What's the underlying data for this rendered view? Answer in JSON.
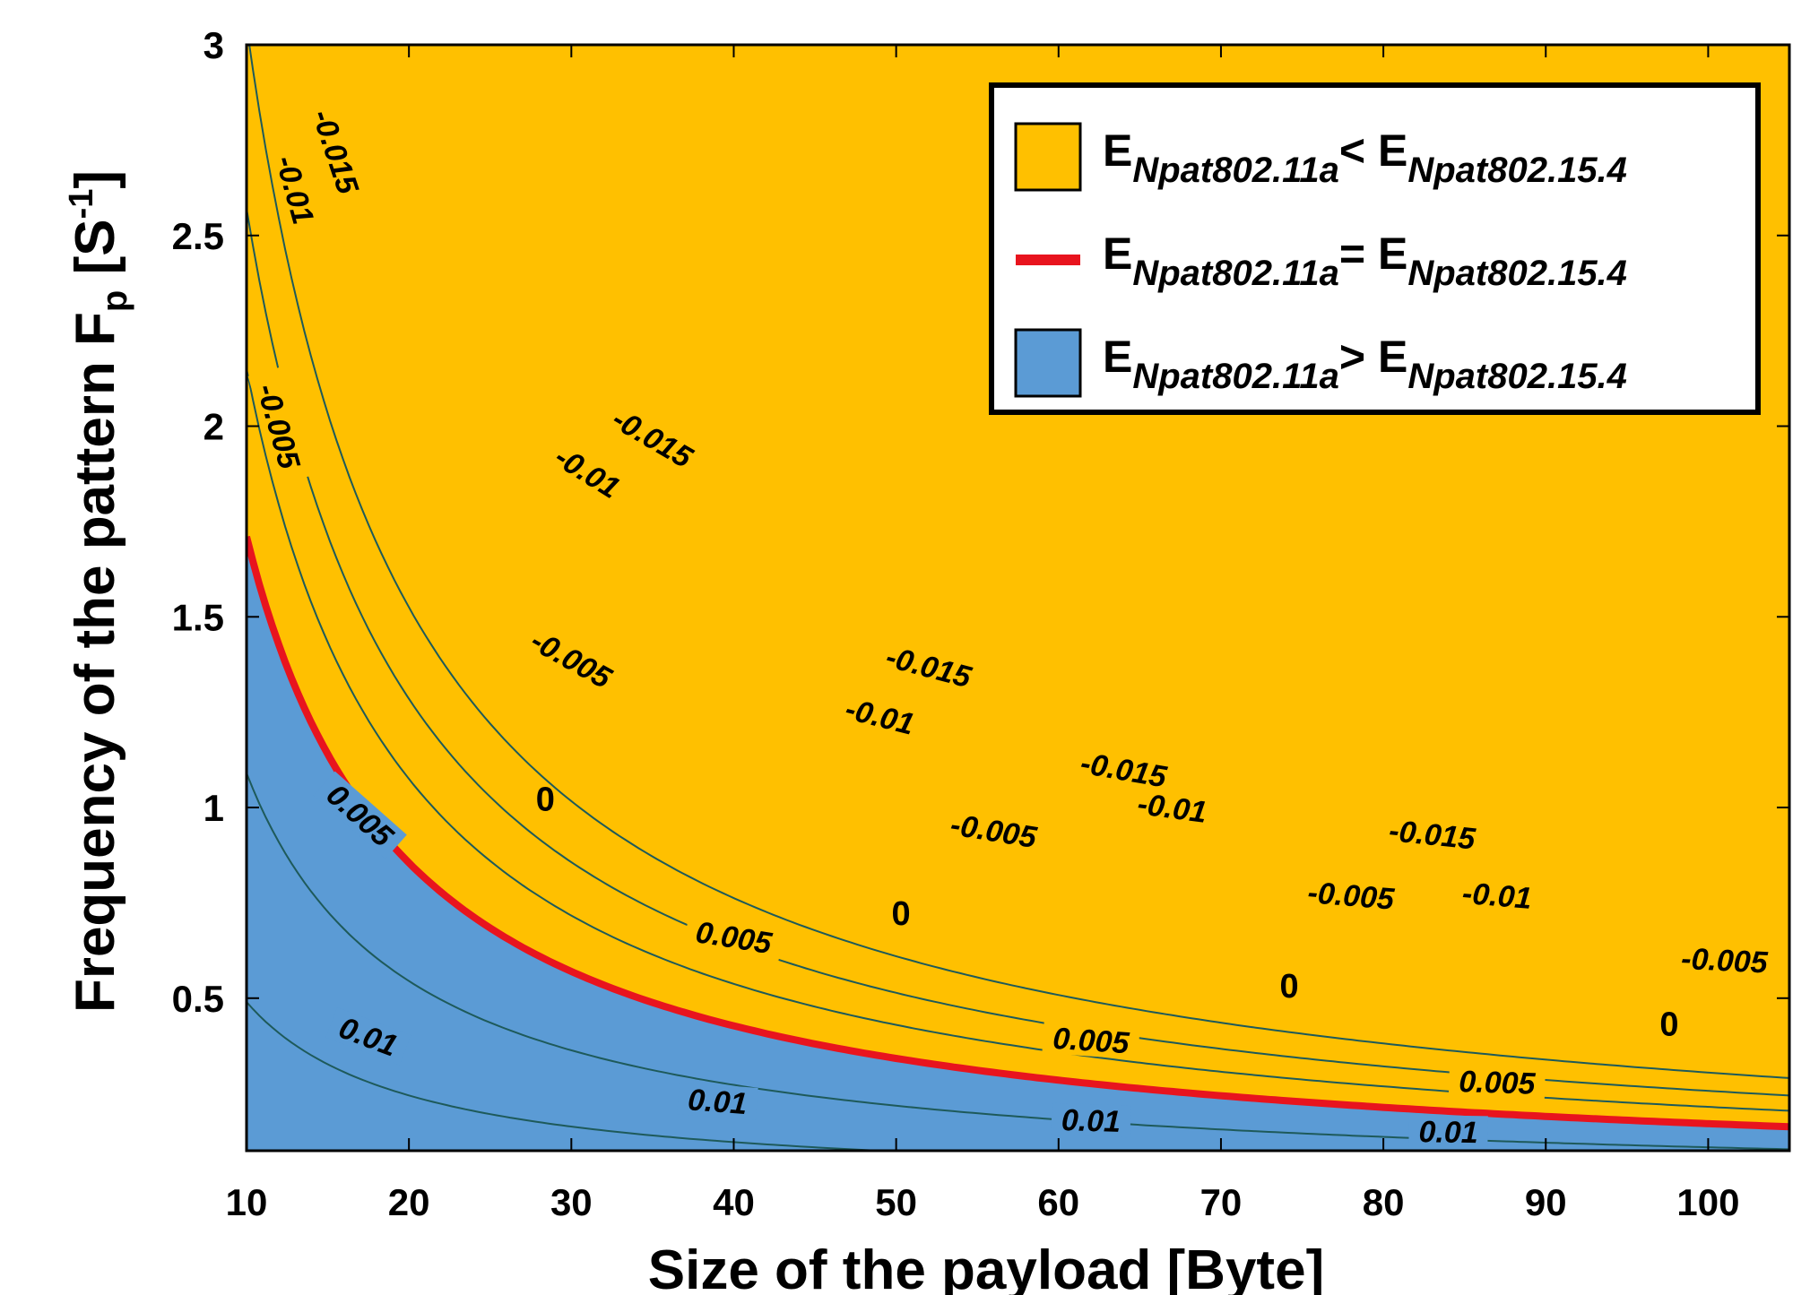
{
  "chart_data": {
    "type": "contour",
    "xlabel": "Size of the payload [Byte]",
    "ylabel": {
      "main": "Frequency of the pattern F",
      "sub": "p",
      "unit_open": " [S",
      "unit_sup": "-1",
      "unit_close": "]"
    },
    "xlim": [
      10,
      105
    ],
    "ylim": [
      0.1,
      3
    ],
    "xticks": [
      10,
      20,
      30,
      40,
      50,
      60,
      70,
      80,
      90,
      100
    ],
    "yticks": [
      0.5,
      1,
      1.5,
      2,
      2.5,
      3
    ],
    "grid": false,
    "legend_position": "top-right",
    "legend": [
      {
        "kind": "patch",
        "color": "#FFC000",
        "base": "E",
        "sub_left": "Npat802.11a",
        "relation": "<",
        "sub_right": "Npat802.15.4"
      },
      {
        "kind": "line",
        "color": "#E8141E",
        "base": "E",
        "sub_left": "Npat802.11a",
        "relation": "=",
        "sub_right": "Npat802.15.4"
      },
      {
        "kind": "patch",
        "color": "#5B9BD5",
        "base": "E",
        "sub_left": "Npat802.11a",
        "relation": ">",
        "sub_right": "Npat802.15.4"
      }
    ],
    "regions": {
      "above_zero_color": "#FFC000",
      "below_zero_color": "#5B9BD5",
      "zero_line_color": "#E8141E",
      "contour_line_color": "#1E5A5A"
    },
    "contours": [
      {
        "level": "-0.015",
        "k": 30.5,
        "labels": [
          [
            15.5,
            2.72
          ],
          [
            35,
            1.97
          ],
          [
            52,
            1.37
          ],
          [
            64,
            1.1
          ],
          [
            83,
            0.93
          ]
        ]
      },
      {
        "level": "-0.01",
        "k": 25.7,
        "labels": [
          [
            13,
            2.62
          ],
          [
            31,
            1.88
          ],
          [
            49,
            1.24
          ],
          [
            67,
            1.0
          ],
          [
            87,
            0.77
          ]
        ]
      },
      {
        "level": "-0.005",
        "k": 21.5,
        "labels": [
          [
            12,
            2.0
          ],
          [
            30,
            1.39
          ],
          [
            56,
            0.94
          ],
          [
            78,
            0.77
          ],
          [
            101,
            0.6
          ]
        ]
      },
      {
        "level": "0",
        "k": 17.1,
        "labels": [
          [
            28.4,
            1.02
          ],
          [
            50.3,
            0.72
          ],
          [
            74.2,
            0.53
          ],
          [
            97.6,
            0.43
          ]
        ]
      },
      {
        "level": "0.005",
        "k": 10.9,
        "labels": [
          [
            17,
            0.98
          ],
          [
            40,
            0.66
          ],
          [
            62,
            0.39
          ],
          [
            87,
            0.28
          ]
        ]
      },
      {
        "level": "0.01",
        "k": 4.9,
        "labels": [
          [
            17.5,
            0.4
          ],
          [
            39,
            0.23
          ],
          [
            62,
            0.18
          ],
          [
            84,
            0.15
          ]
        ]
      }
    ]
  }
}
